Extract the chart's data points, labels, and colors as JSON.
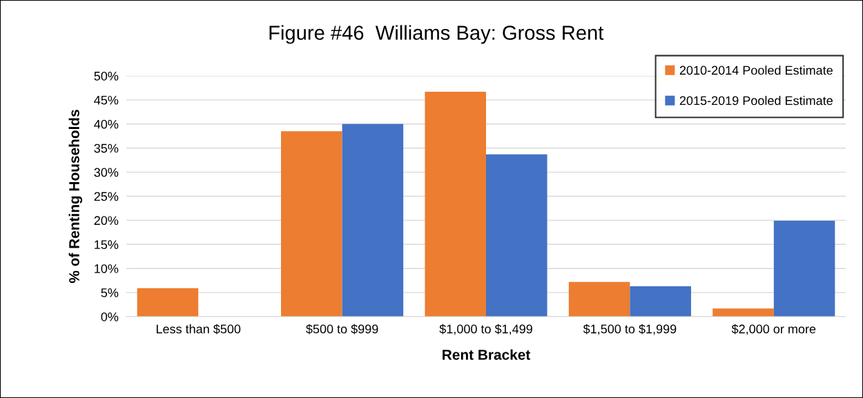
{
  "chart_data": {
    "type": "bar",
    "title": "Figure #46  Williams Bay: Gross Rent",
    "xlabel": "Rent Bracket",
    "ylabel": "% of Renting Households",
    "categories": [
      "Less than $500",
      "$500 to $999",
      "$1,000 to $1,499",
      "$1,500 to $1,999",
      "$2,000 or more"
    ],
    "series": [
      {
        "name": "2010-2014 Pooled Estimate",
        "color": "#ed7d31",
        "values": [
          5.9,
          38.5,
          46.7,
          7.2,
          1.7
        ]
      },
      {
        "name": "2015-2019 Pooled Estimate",
        "color": "#4472c4",
        "values": [
          0,
          40.0,
          33.7,
          6.3,
          19.9
        ]
      }
    ],
    "ylim": [
      0,
      50
    ],
    "yticks": [
      {
        "value": 0,
        "label": "0%"
      },
      {
        "value": 5,
        "label": "5%"
      },
      {
        "value": 10,
        "label": "10%"
      },
      {
        "value": 15,
        "label": "15%"
      },
      {
        "value": 20,
        "label": "20%"
      },
      {
        "value": 25,
        "label": "25%"
      },
      {
        "value": 30,
        "label": "30%"
      },
      {
        "value": 35,
        "label": "35%"
      },
      {
        "value": 40,
        "label": "40%"
      },
      {
        "value": 45,
        "label": "45%"
      },
      {
        "value": 50,
        "label": "50%"
      }
    ],
    "grid": "y",
    "legend": "top right"
  }
}
